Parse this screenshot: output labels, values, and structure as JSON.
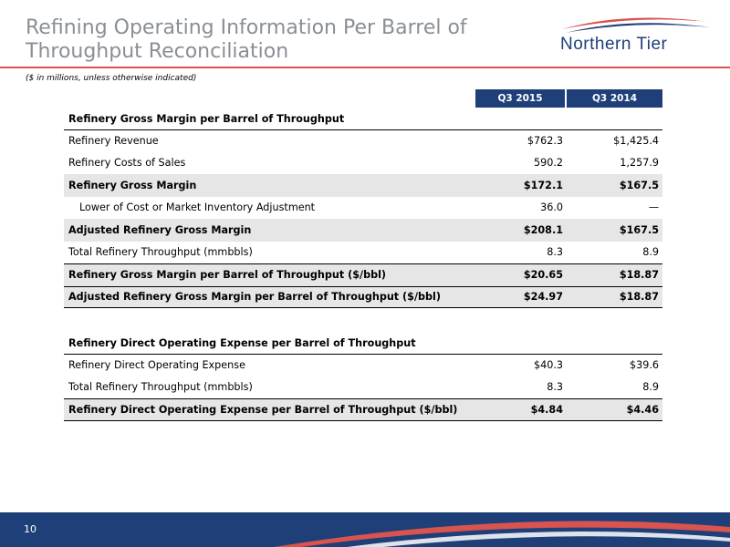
{
  "header": {
    "title": "Refining Operating Information Per Barrel of Throughput Reconciliation",
    "subtitle": "($ in millions, unless otherwise indicated)",
    "logo_text": "Northern Tier"
  },
  "table": {
    "columns": [
      "Q3 2015",
      "Q3 2014"
    ],
    "section1": {
      "heading": "Refinery Gross Margin per Barrel of Throughput",
      "rows": [
        {
          "label": "Refinery Revenue",
          "v1": "$762.3",
          "v2": "$1,425.4"
        },
        {
          "label": "Refinery Costs of Sales",
          "v1": "590.2",
          "v2": "1,257.9"
        },
        {
          "label": "Refinery Gross Margin",
          "v1": "$172.1",
          "v2": "$167.5"
        },
        {
          "label": "Lower of Cost or Market Inventory Adjustment",
          "v1": "36.0",
          "v2": "—"
        },
        {
          "label": "Adjusted Refinery Gross Margin",
          "v1": "$208.1",
          "v2": "$167.5"
        },
        {
          "label": "Total Refinery Throughput (mmbbls)",
          "v1": "8.3",
          "v2": "8.9"
        },
        {
          "label": "Refinery Gross Margin per Barrel of Throughput ($/bbl)",
          "v1": "$20.65",
          "v2": "$18.87"
        },
        {
          "label": "Adjusted Refinery Gross Margin per Barrel of Throughput ($/bbl)",
          "v1": "$24.97",
          "v2": "$18.87"
        }
      ]
    },
    "section2": {
      "heading": "Refinery Direct Operating Expense per Barrel of Throughput",
      "rows": [
        {
          "label": "Refinery Direct Operating Expense",
          "v1": "$40.3",
          "v2": "$39.6"
        },
        {
          "label": "Total Refinery Throughput (mmbbls)",
          "v1": "8.3",
          "v2": "8.9"
        },
        {
          "label": "Refinery Direct Operating Expense per Barrel of Throughput ($/bbl)",
          "v1": "$4.84",
          "v2": "$4.46"
        }
      ]
    }
  },
  "footer": {
    "page_number": "10"
  },
  "colors": {
    "brand_navy": "#1f3f78",
    "accent_red": "#d9534f",
    "title_gray": "#8a8f96"
  }
}
